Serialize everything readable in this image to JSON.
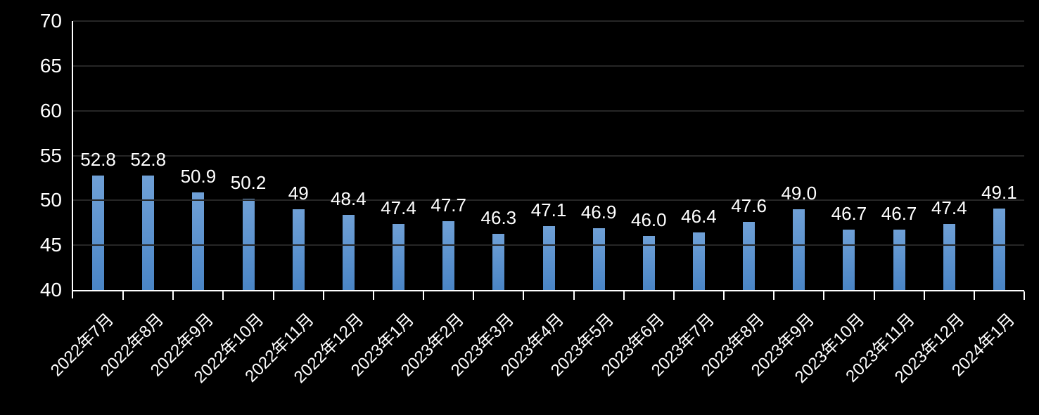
{
  "chart_data": {
    "type": "bar",
    "title": "",
    "xlabel": "",
    "ylabel": "",
    "categories": [
      "2022年7月",
      "2022年8月",
      "2022年9月",
      "2022年10月",
      "2022年11月",
      "2022年12月",
      "2023年1月",
      "2023年2月",
      "2023年3月",
      "2023年4月",
      "2023年5月",
      "2023年6月",
      "2023年7月",
      "2023年8月",
      "2023年9月",
      "2023年10月",
      "2023年11月",
      "2023年12月",
      "2024年1月"
    ],
    "values": [
      52.8,
      52.8,
      50.9,
      50.2,
      49,
      48.4,
      47.4,
      47.7,
      46.3,
      47.1,
      46.9,
      46.0,
      46.4,
      47.6,
      49.0,
      46.7,
      46.7,
      47.4,
      49.1
    ],
    "data_labels": [
      "52.8",
      "52.8",
      "50.9",
      "50.2",
      "49",
      "48.4",
      "47.4",
      "47.7",
      "46.3",
      "47.1",
      "46.9",
      "46.0",
      "46.4",
      "47.6",
      "49.0",
      "46.7",
      "46.7",
      "47.4",
      "49.1"
    ],
    "ylim": [
      40,
      70
    ],
    "yticks": [
      40,
      45,
      50,
      55,
      60,
      65,
      70
    ],
    "grid": true,
    "legend_position": "none",
    "x_label_rotation_deg": 45,
    "colors": {
      "background": "#000000",
      "bar_gradient_top": "#6FA0D6",
      "bar_gradient_bottom": "#4A85C6",
      "text": "#FFFFFF",
      "gridline": "#262626",
      "axis_line": "#FFFFFF"
    }
  }
}
